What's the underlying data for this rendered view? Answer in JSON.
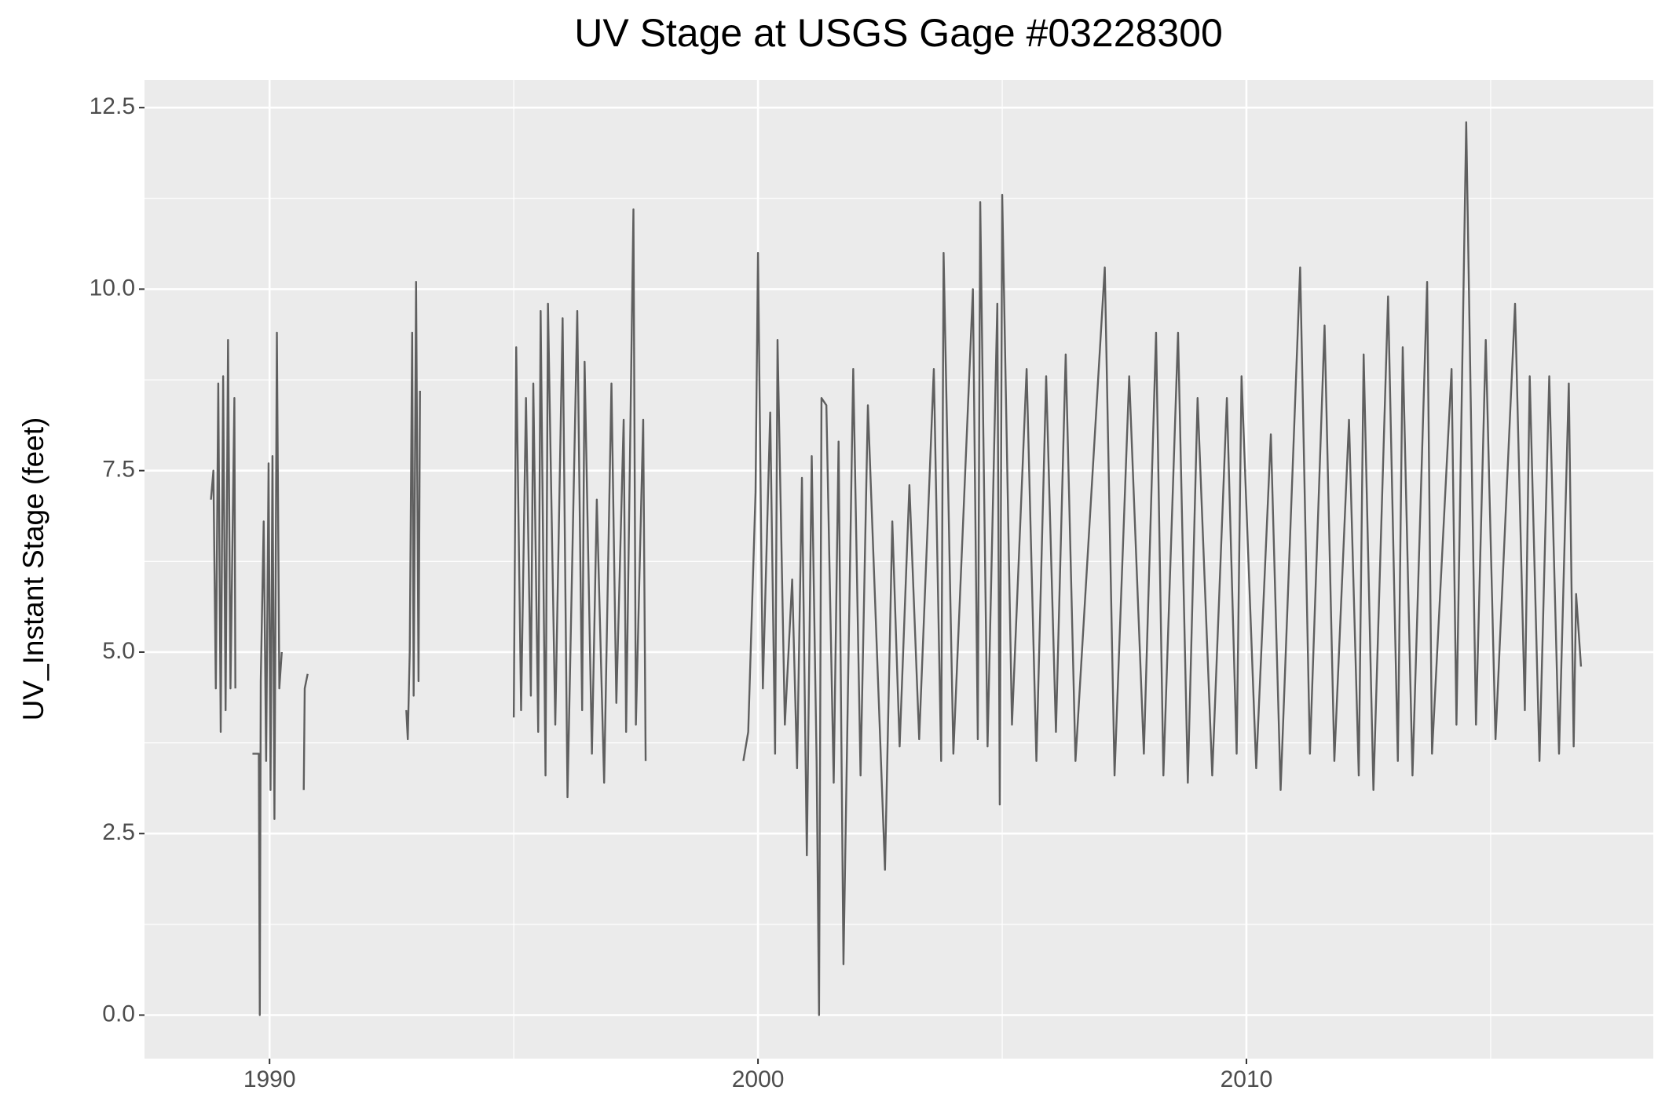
{
  "chart_data": {
    "type": "line",
    "title": "UV Stage at USGS Gage #03228300",
    "y_label": "UV_Instant Stage (feet)",
    "x": [
      1988.8,
      1988.85,
      1988.9,
      1988.95,
      1989.0,
      1989.05,
      1989.1,
      1989.15,
      1989.2,
      1989.28,
      1989.3,
      1989.45,
      1989.65,
      1989.78,
      1989.8,
      1989.82,
      1989.88,
      1989.93,
      1989.98,
      1990.02,
      1990.06,
      1990.1,
      1990.15,
      1990.2,
      1990.25,
      1990.45,
      1990.7,
      1990.72,
      1990.78,
      1991.8,
      1992.8,
      1992.83,
      1992.87,
      1992.92,
      1992.95,
      1993.0,
      1993.05,
      1993.08,
      1994.0,
      1995.0,
      1995.05,
      1995.15,
      1995.25,
      1995.35,
      1995.4,
      1995.5,
      1995.55,
      1995.65,
      1995.7,
      1995.85,
      1996.0,
      1996.1,
      1996.3,
      1996.4,
      1996.45,
      1996.6,
      1996.7,
      1996.85,
      1997.0,
      1997.1,
      1997.25,
      1997.3,
      1997.45,
      1997.5,
      1997.65,
      1997.7,
      1998.5,
      1999.7,
      1999.8,
      1999.95,
      2000.0,
      2000.1,
      2000.25,
      2000.35,
      2000.4,
      2000.55,
      2000.7,
      2000.8,
      2000.9,
      2001.0,
      2001.1,
      2001.2,
      2001.25,
      2001.3,
      2001.4,
      2001.55,
      2001.65,
      2001.75,
      2001.95,
      2002.1,
      2002.25,
      2002.6,
      2002.75,
      2002.9,
      2003.1,
      2003.3,
      2003.6,
      2003.75,
      2003.8,
      2004.0,
      2004.4,
      2004.5,
      2004.55,
      2004.7,
      2004.9,
      2004.95,
      2005.0,
      2005.2,
      2005.5,
      2005.7,
      2005.9,
      2006.1,
      2006.3,
      2006.5,
      2007.1,
      2007.3,
      2007.6,
      2007.9,
      2008.15,
      2008.3,
      2008.6,
      2008.8,
      2009.0,
      2009.3,
      2009.6,
      2009.8,
      2009.9,
      2010.2,
      2010.5,
      2010.7,
      2011.1,
      2011.3,
      2011.6,
      2011.8,
      2012.1,
      2012.3,
      2012.4,
      2012.6,
      2012.9,
      2013.1,
      2013.2,
      2013.4,
      2013.7,
      2013.8,
      2014.2,
      2014.3,
      2014.5,
      2014.7,
      2014.9,
      2015.1,
      2015.5,
      2015.7,
      2015.8,
      2016.0,
      2016.2,
      2016.4,
      2016.6,
      2016.7,
      2016.75,
      2016.85
    ],
    "series": [
      {
        "color": "#5f5f5f",
        "values": [
          7.1,
          7.5,
          4.5,
          8.7,
          3.9,
          8.8,
          4.2,
          9.3,
          4.5,
          8.5,
          4.5,
          null,
          3.6,
          3.6,
          0,
          4.6,
          6.8,
          3.5,
          7.6,
          3.1,
          7.7,
          2.7,
          9.4,
          4.5,
          5.0,
          null,
          3.1,
          4.5,
          4.7,
          null,
          4.2,
          3.8,
          5.0,
          9.4,
          4.4,
          10.1,
          4.6,
          8.6,
          null,
          4.1,
          9.2,
          4.2,
          8.5,
          4.4,
          8.7,
          3.9,
          9.7,
          3.3,
          9.8,
          4.0,
          9.6,
          3.0,
          9.7,
          4.2,
          9.0,
          3.6,
          7.1,
          3.2,
          8.7,
          4.3,
          8.2,
          3.9,
          11.1,
          4.0,
          8.2,
          3.5,
          null,
          3.5,
          3.9,
          7.2,
          10.5,
          4.5,
          8.3,
          3.6,
          9.3,
          4.0,
          6.0,
          3.4,
          7.4,
          2.2,
          7.7,
          3.5,
          0,
          8.5,
          8.4,
          3.2,
          7.9,
          0.7,
          8.9,
          3.3,
          8.4,
          2.0,
          6.8,
          3.7,
          7.3,
          3.8,
          8.9,
          3.5,
          10.5,
          3.6,
          10.0,
          3.8,
          11.2,
          3.7,
          9.8,
          2.9,
          11.3,
          4.0,
          8.9,
          3.5,
          8.8,
          3.9,
          9.1,
          3.5,
          10.3,
          3.3,
          8.8,
          3.6,
          9.4,
          3.3,
          9.4,
          3.2,
          8.5,
          3.3,
          8.5,
          3.6,
          8.8,
          3.4,
          8.0,
          3.1,
          10.3,
          3.6,
          9.5,
          3.5,
          8.2,
          3.3,
          9.1,
          3.1,
          9.9,
          3.5,
          9.2,
          3.3,
          10.1,
          3.6,
          8.9,
          4.0,
          12.3,
          4.0,
          9.3,
          3.8,
          9.8,
          4.2,
          8.8,
          3.5,
          8.8,
          3.6,
          8.7,
          3.7,
          5.8,
          4.8
        ]
      }
    ],
    "xlim": [
      1987.44,
      2018.33
    ],
    "ylim": [
      -0.6,
      12.88
    ],
    "xticks": [
      1990,
      2000,
      2010
    ],
    "yticks": [
      {
        "value": 0,
        "label": "0.0"
      },
      2.5,
      {
        "value": 5,
        "label": "5.0"
      },
      7.5,
      {
        "value": 10,
        "label": "10.0"
      },
      12.5
    ],
    "x_minor_grid": [
      1995,
      2005,
      2015
    ],
    "y_minor_grid": [
      1.25,
      3.75,
      6.25,
      8.75,
      11.25
    ],
    "grid": true
  }
}
